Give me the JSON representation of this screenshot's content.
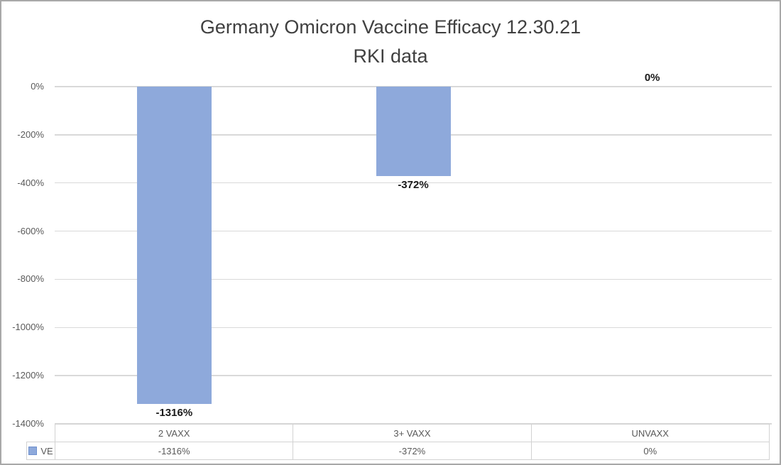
{
  "window": {
    "background": "#FFFFFF",
    "border_color": "#A8A8A8"
  },
  "chart_data": {
    "type": "bar",
    "title": "Germany Omicron Vaccine Efficacy 12.30.21",
    "subtitle": "RKI data",
    "categories": [
      "2 VAXX",
      "3+ VAXX",
      "UNVAXX"
    ],
    "series": [
      {
        "name": "VE",
        "values": [
          -1316,
          -372,
          0
        ]
      }
    ],
    "data_labels": [
      "-1316%",
      "-372%",
      "0%"
    ],
    "ylim": [
      -1400,
      0
    ],
    "yticks": [
      0,
      -200,
      -400,
      -600,
      -800,
      -1000,
      -1200,
      -1400
    ],
    "ytick_labels": [
      "0%",
      "-200%",
      "-400%",
      "-600%",
      "-800%",
      "-1000%",
      "-1200%",
      "-1400%"
    ],
    "grid": true,
    "legend_position": "bottom-table",
    "colors": {
      "bar_fill": "#8EA9DB",
      "legend_marker_border": "#7091CE",
      "gridline": "#D9D9D9",
      "axis_text": "#595959",
      "title_text": "#404040",
      "data_label_text": "#1A1A1A",
      "table_border": "#D2D2D2"
    }
  },
  "data_table": {
    "header": [
      "2 VAXX",
      "3+ VAXX",
      "UNVAXX"
    ],
    "series_row": {
      "legend_label": "VE",
      "values": [
        "-1316%",
        "-372%",
        "0%"
      ]
    }
  }
}
